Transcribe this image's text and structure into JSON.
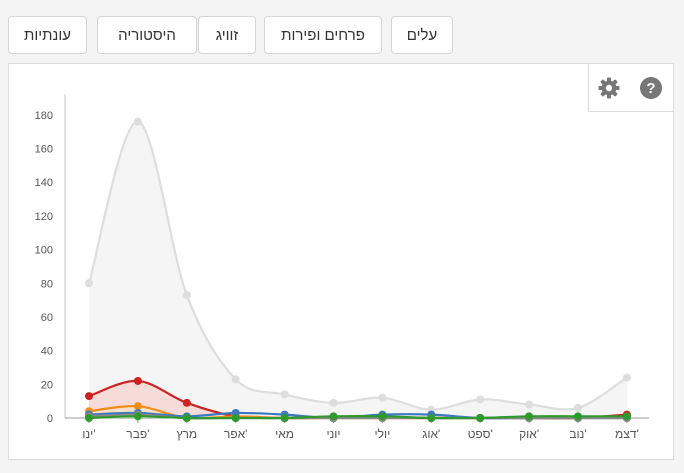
{
  "tabs": [
    {
      "id": "leaves",
      "label": "עלים",
      "active": false
    },
    {
      "id": "flowers",
      "label": "פרחים ופירות",
      "active": true
    },
    {
      "id": "pairing",
      "label": "זוויג",
      "active": false
    },
    {
      "id": "history",
      "label": "היסטוריה",
      "active": false
    },
    {
      "id": "seasonality",
      "label": "עונתיות",
      "active": false
    }
  ],
  "toolbar": {
    "help_icon": "help-icon",
    "settings_icon": "gear-icon"
  },
  "chart_data": {
    "type": "area",
    "categories": [
      "ינו'",
      "פבר'",
      "מרץ",
      "אפר'",
      "מאי",
      "יוני",
      "יולי",
      "אוג'",
      "ספט'",
      "אוק'",
      "נוב'",
      "דצמ'"
    ],
    "ylim": [
      0,
      190
    ],
    "yticks": [
      0,
      20,
      40,
      60,
      80,
      100,
      120,
      140,
      160,
      180
    ],
    "grid": false,
    "series": [
      {
        "values": [
          80,
          176,
          73,
          23,
          14,
          9,
          12,
          5,
          11,
          8,
          6,
          24
        ],
        "color": "#dddddd",
        "fill": "#f2f2f2"
      },
      {
        "values": [
          13,
          22,
          9,
          1,
          0,
          0,
          0,
          0,
          0,
          0,
          0,
          2
        ],
        "color": "#cc2222",
        "fill": "#f6d4d2"
      },
      {
        "values": [
          4,
          7,
          0,
          1,
          0,
          0,
          0,
          0,
          0,
          0,
          0,
          0
        ],
        "color": "#f08c1a",
        "fill": "#fbe1c2"
      },
      {
        "values": [
          2,
          3,
          1,
          3,
          2,
          0,
          2,
          2,
          0,
          0,
          0,
          0
        ],
        "color": "#3a78c2",
        "fill": "none"
      },
      {
        "values": [
          1,
          2,
          0,
          0,
          0,
          0,
          0,
          0,
          0,
          0,
          0,
          0
        ],
        "color": "#888888",
        "fill": "#e0e0e0"
      },
      {
        "values": [
          0,
          1,
          0,
          0,
          0,
          1,
          1,
          0,
          0,
          1,
          1,
          1
        ],
        "color": "#2e9a2e",
        "fill": "none"
      }
    ]
  }
}
